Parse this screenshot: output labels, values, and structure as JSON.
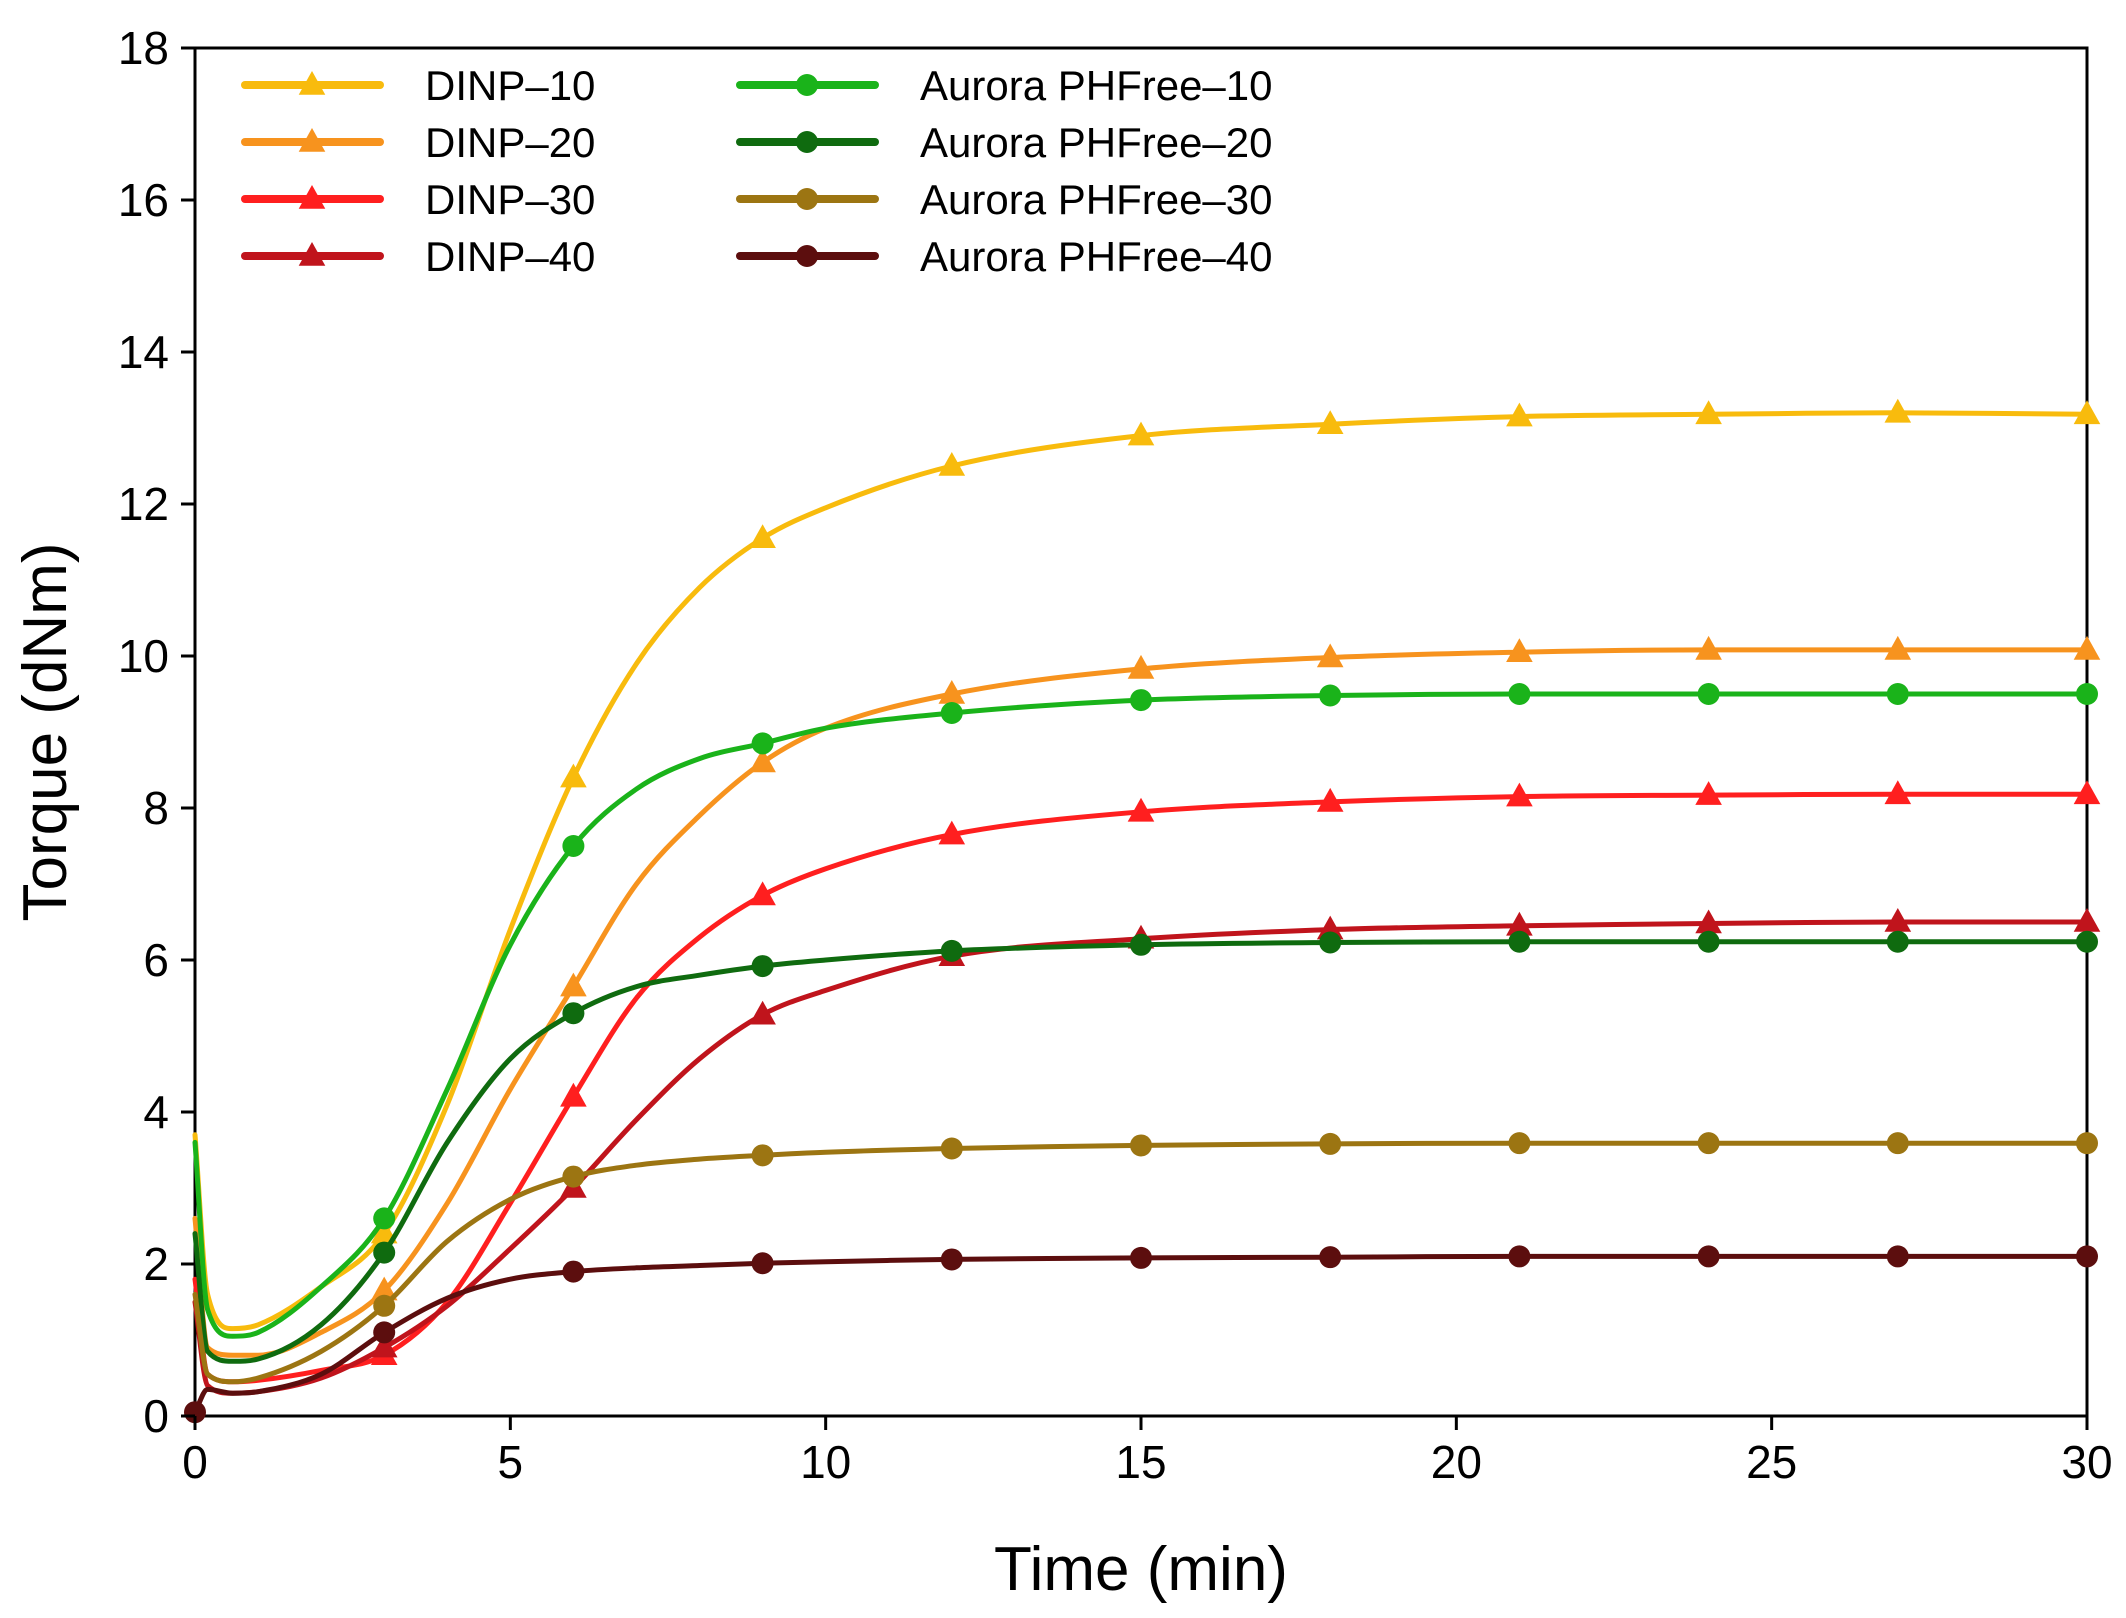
{
  "chart_data": {
    "type": "line",
    "title": "",
    "xlabel": "Time (min)",
    "ylabel": "Torque (dNm)",
    "xlim": [
      0,
      30
    ],
    "ylim": [
      0,
      18
    ],
    "xticks": [
      0,
      5,
      10,
      15,
      20,
      25,
      30
    ],
    "xtick_labels": [
      "0",
      "5",
      "10",
      "15",
      "20",
      "25",
      "30"
    ],
    "yticks": [
      0,
      2,
      4,
      6,
      8,
      10,
      12,
      14,
      16,
      18
    ],
    "ytick_labels": [
      "0",
      "2",
      "4",
      "6",
      "8",
      "10",
      "12",
      "14",
      "16",
      "18"
    ],
    "grid": false,
    "legend_position": "top-left",
    "series": [
      {
        "name": "DINP–10",
        "color": "#f8bb0d",
        "marker": "triangle",
        "x": [
          0,
          0.2,
          0.6,
          1,
          2,
          3,
          4,
          5,
          6,
          7,
          8,
          9,
          10,
          12,
          15,
          18,
          21,
          24,
          27,
          30
        ],
        "y": [
          3.7,
          1.6,
          1.15,
          1.2,
          1.7,
          2.4,
          4.1,
          6.4,
          8.4,
          9.9,
          10.9,
          11.55,
          11.95,
          12.5,
          12.9,
          13.05,
          13.15,
          13.18,
          13.2,
          13.18
        ],
        "markers": [
          [
            3,
            2.4
          ],
          [
            6,
            8.4
          ],
          [
            9,
            11.55
          ],
          [
            12,
            12.5
          ],
          [
            15,
            12.9
          ],
          [
            18,
            13.05
          ],
          [
            21,
            13.15
          ],
          [
            24,
            13.18
          ],
          [
            27,
            13.2
          ],
          [
            30,
            13.18
          ]
        ]
      },
      {
        "name": "DINP–20",
        "color": "#f7931e",
        "marker": "triangle",
        "x": [
          0,
          0.2,
          0.6,
          1,
          2,
          3,
          4,
          5,
          6,
          7,
          8,
          9,
          10,
          12,
          15,
          18,
          21,
          24,
          27,
          30
        ],
        "y": [
          2.6,
          0.9,
          0.8,
          0.8,
          1.1,
          1.65,
          2.8,
          4.3,
          5.65,
          7.0,
          7.9,
          8.6,
          9.05,
          9.5,
          9.83,
          9.98,
          10.05,
          10.08,
          10.08,
          10.08
        ],
        "markers": [
          [
            3,
            1.65
          ],
          [
            6,
            5.65
          ],
          [
            9,
            8.6
          ],
          [
            12,
            9.5
          ],
          [
            15,
            9.83
          ],
          [
            18,
            9.98
          ],
          [
            21,
            10.05
          ],
          [
            24,
            10.08
          ],
          [
            27,
            10.08
          ],
          [
            30,
            10.08
          ]
        ]
      },
      {
        "name": "DINP–30",
        "color": "#ff1f1f",
        "marker": "triangle",
        "x": [
          0,
          0.2,
          0.6,
          1,
          2,
          3,
          4,
          5,
          6,
          7,
          8,
          9,
          10,
          12,
          15,
          18,
          21,
          24,
          27,
          30
        ],
        "y": [
          1.8,
          0.55,
          0.45,
          0.47,
          0.6,
          0.8,
          1.5,
          2.8,
          4.2,
          5.5,
          6.3,
          6.85,
          7.2,
          7.65,
          7.95,
          8.08,
          8.15,
          8.17,
          8.18,
          8.18
        ],
        "markers": [
          [
            3,
            0.8
          ],
          [
            6,
            4.2
          ],
          [
            9,
            6.85
          ],
          [
            12,
            7.65
          ],
          [
            15,
            7.95
          ],
          [
            18,
            8.08
          ],
          [
            21,
            8.15
          ],
          [
            24,
            8.17
          ],
          [
            27,
            8.18
          ],
          [
            30,
            8.18
          ]
        ]
      },
      {
        "name": "DINP–40",
        "color": "#c0141c",
        "marker": "triangle",
        "x": [
          0,
          0.2,
          0.6,
          1,
          2,
          3,
          4,
          5,
          6,
          7,
          8,
          9,
          10,
          12,
          15,
          18,
          21,
          24,
          27,
          30
        ],
        "y": [
          1.5,
          0.4,
          0.3,
          0.32,
          0.5,
          0.9,
          1.45,
          2.2,
          3.0,
          3.9,
          4.7,
          5.28,
          5.6,
          6.05,
          6.28,
          6.4,
          6.45,
          6.48,
          6.5,
          6.5
        ],
        "markers": [
          [
            3,
            0.9
          ],
          [
            6,
            3.0
          ],
          [
            9,
            5.28
          ],
          [
            12,
            6.05
          ],
          [
            15,
            6.28
          ],
          [
            18,
            6.4
          ],
          [
            21,
            6.45
          ],
          [
            24,
            6.48
          ],
          [
            27,
            6.5
          ],
          [
            30,
            6.5
          ]
        ]
      },
      {
        "name": "Aurora PHFree–10",
        "color": "#1ab31a",
        "marker": "circle",
        "x": [
          0,
          0.2,
          0.6,
          1,
          2,
          3,
          4,
          5,
          6,
          7,
          8,
          9,
          10,
          12,
          15,
          18,
          21,
          24,
          27,
          30
        ],
        "y": [
          3.6,
          1.4,
          1.05,
          1.1,
          1.7,
          2.6,
          4.3,
          6.2,
          7.5,
          8.25,
          8.65,
          8.85,
          9.05,
          9.25,
          9.42,
          9.48,
          9.5,
          9.5,
          9.5,
          9.5
        ],
        "markers": [
          [
            3,
            2.6
          ],
          [
            6,
            7.5
          ],
          [
            9,
            8.85
          ],
          [
            12,
            9.25
          ],
          [
            15,
            9.42
          ],
          [
            18,
            9.48
          ],
          [
            21,
            9.5
          ],
          [
            24,
            9.5
          ],
          [
            27,
            9.5
          ],
          [
            30,
            9.5
          ]
        ]
      },
      {
        "name": "Aurora PHFree–20",
        "color": "#0f6b0f",
        "marker": "circle",
        "x": [
          0,
          0.2,
          0.6,
          1,
          2,
          3,
          4,
          5,
          6,
          7,
          8,
          9,
          10,
          12,
          15,
          18,
          21,
          24,
          27,
          30
        ],
        "y": [
          2.4,
          0.85,
          0.72,
          0.75,
          1.2,
          2.15,
          3.6,
          4.7,
          5.3,
          5.65,
          5.8,
          5.92,
          6.0,
          6.12,
          6.2,
          6.23,
          6.24,
          6.24,
          6.24,
          6.24
        ],
        "markers": [
          [
            3,
            2.15
          ],
          [
            6,
            5.3
          ],
          [
            9,
            5.92
          ],
          [
            12,
            6.12
          ],
          [
            15,
            6.2
          ],
          [
            18,
            6.23
          ],
          [
            21,
            6.24
          ],
          [
            24,
            6.24
          ],
          [
            27,
            6.24
          ],
          [
            30,
            6.24
          ]
        ]
      },
      {
        "name": "Aurora PHFree–30",
        "color": "#9c7512",
        "marker": "circle",
        "x": [
          0,
          0.2,
          0.6,
          1,
          2,
          3,
          4,
          5,
          6,
          7,
          8,
          9,
          10,
          12,
          15,
          18,
          21,
          24,
          27,
          30
        ],
        "y": [
          1.6,
          0.55,
          0.45,
          0.5,
          0.85,
          1.45,
          2.3,
          2.85,
          3.15,
          3.3,
          3.38,
          3.43,
          3.47,
          3.52,
          3.56,
          3.58,
          3.59,
          3.59,
          3.59,
          3.59
        ],
        "markers": [
          [
            3,
            1.45
          ],
          [
            6,
            3.15
          ],
          [
            9,
            3.43
          ],
          [
            12,
            3.52
          ],
          [
            15,
            3.56
          ],
          [
            18,
            3.58
          ],
          [
            21,
            3.59
          ],
          [
            24,
            3.59
          ],
          [
            27,
            3.59
          ],
          [
            30,
            3.59
          ]
        ]
      },
      {
        "name": "Aurora PHFree–40",
        "color": "#5c0e0e",
        "marker": "circle",
        "x": [
          0,
          0.2,
          0.6,
          1,
          2,
          3,
          4,
          5,
          6,
          7,
          8,
          9,
          10,
          12,
          15,
          18,
          21,
          24,
          27,
          30
        ],
        "y": [
          0.05,
          0.35,
          0.3,
          0.32,
          0.55,
          1.1,
          1.55,
          1.8,
          1.9,
          1.95,
          1.98,
          2.01,
          2.03,
          2.06,
          2.08,
          2.09,
          2.1,
          2.1,
          2.1,
          2.1
        ],
        "markers": [
          [
            0,
            0.05
          ],
          [
            3,
            1.1
          ],
          [
            6,
            1.9
          ],
          [
            9,
            2.01
          ],
          [
            12,
            2.06
          ],
          [
            15,
            2.08
          ],
          [
            18,
            2.09
          ],
          [
            21,
            2.1
          ],
          [
            24,
            2.1
          ],
          [
            27,
            2.1
          ],
          [
            30,
            2.1
          ]
        ]
      }
    ]
  }
}
